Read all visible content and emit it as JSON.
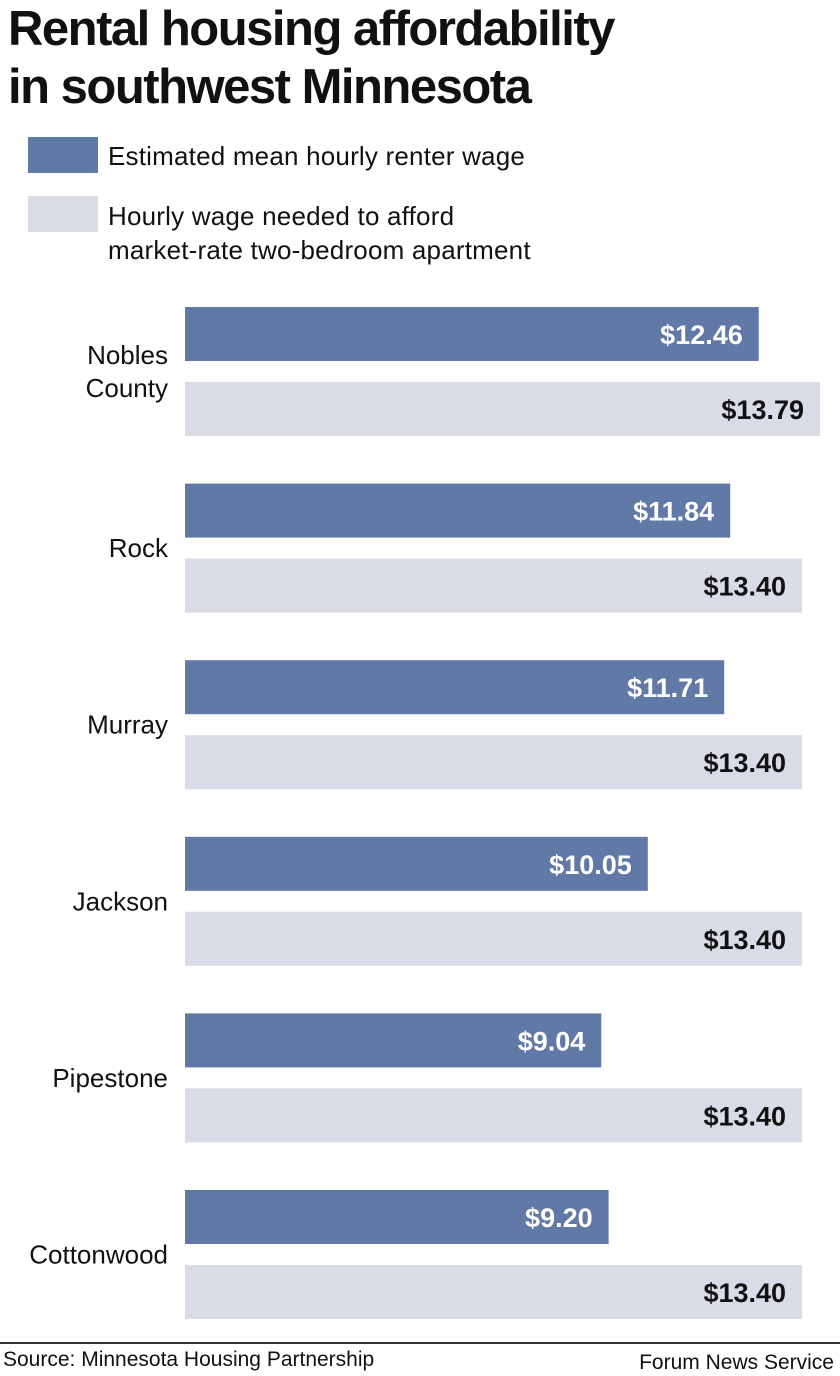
{
  "chart_data": {
    "type": "bar",
    "orientation": "horizontal",
    "title_lines": [
      "Rental housing affordability",
      "in southwest Minnesota"
    ],
    "categories": [
      [
        "Nobles",
        "County"
      ],
      [
        "Rock"
      ],
      [
        "Murray"
      ],
      [
        "Jackson"
      ],
      [
        "Pipestone"
      ],
      [
        "Cottonwood"
      ]
    ],
    "series": [
      {
        "name": "Estimated mean hourly renter wage",
        "color": "#6179a6",
        "label_color": "#ffffff",
        "values": [
          12.46,
          11.84,
          11.71,
          10.05,
          9.04,
          9.2
        ],
        "labels": [
          "$12.46",
          "$11.84",
          "$11.71",
          "$10.05",
          "$9.04",
          "$9.20"
        ]
      },
      {
        "name_lines": [
          "Hourly wage needed to afford",
          "market-rate two-bedroom apartment"
        ],
        "color": "#d9dce6",
        "label_color": "#111111",
        "values": [
          13.79,
          13.4,
          13.4,
          13.4,
          13.4,
          13.4
        ],
        "labels": [
          "$13.79",
          "$13.40",
          "$13.40",
          "$13.40",
          "$13.40",
          "$13.40"
        ]
      }
    ],
    "xlim": [
      0,
      13.79
    ],
    "grid": false,
    "legend_placement": "top-left"
  },
  "footer": {
    "source": "Source: Minnesota Housing Partnership",
    "credit": "Forum News Service"
  }
}
